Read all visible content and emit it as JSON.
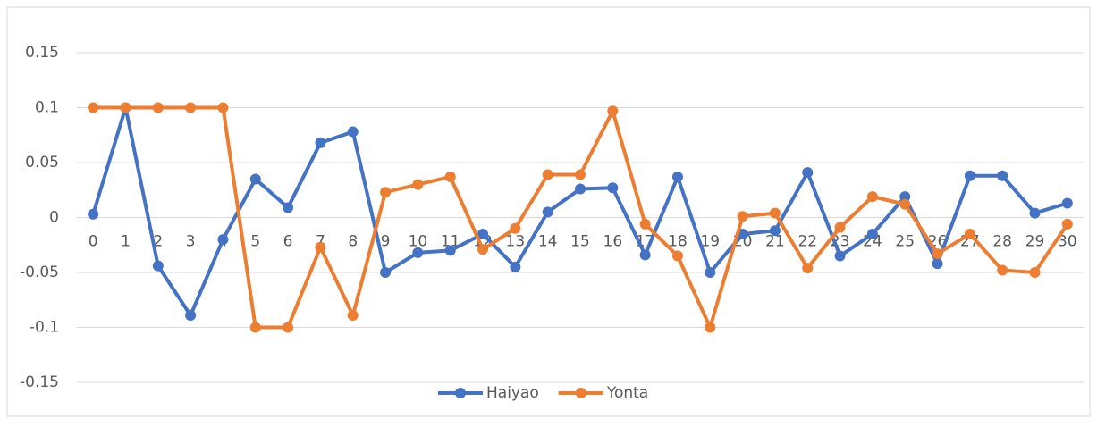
{
  "chart_data": {
    "type": "line",
    "categories": [
      "0",
      "1",
      "2",
      "3",
      "4",
      "5",
      "6",
      "7",
      "8",
      "9",
      "10",
      "11",
      "12",
      "13",
      "14",
      "15",
      "16",
      "17",
      "18",
      "19",
      "20",
      "21",
      "22",
      "23",
      "24",
      "25",
      "26",
      "27",
      "28",
      "29",
      "30"
    ],
    "series": [
      {
        "name": "Haiyao",
        "color": "#4472c4",
        "values": [
          0.003,
          0.1,
          -0.044,
          -0.089,
          -0.02,
          0.035,
          0.009,
          0.068,
          0.078,
          -0.05,
          -0.032,
          -0.03,
          -0.015,
          -0.045,
          0.005,
          0.026,
          0.027,
          -0.034,
          0.037,
          -0.05,
          -0.015,
          -0.012,
          0.041,
          -0.035,
          -0.015,
          0.019,
          -0.042,
          0.038,
          0.038,
          0.004,
          0.013
        ]
      },
      {
        "name": "Yonta",
        "color": "#ed7d31",
        "values": [
          0.1,
          0.1,
          0.1,
          0.1,
          0.1,
          -0.1,
          -0.1,
          -0.027,
          -0.089,
          0.023,
          0.03,
          0.037,
          -0.029,
          -0.01,
          0.039,
          0.039,
          0.097,
          -0.006,
          -0.035,
          -0.1,
          0.001,
          0.004,
          -0.046,
          -0.009,
          0.019,
          0.012,
          -0.033,
          -0.015,
          -0.048,
          -0.05,
          -0.006
        ]
      }
    ],
    "ylim": [
      -0.15,
      0.15
    ],
    "yticks": [
      -0.15,
      -0.1,
      -0.05,
      0,
      0.05,
      0.1,
      0.15
    ],
    "grid": true,
    "legend": "bottom"
  }
}
